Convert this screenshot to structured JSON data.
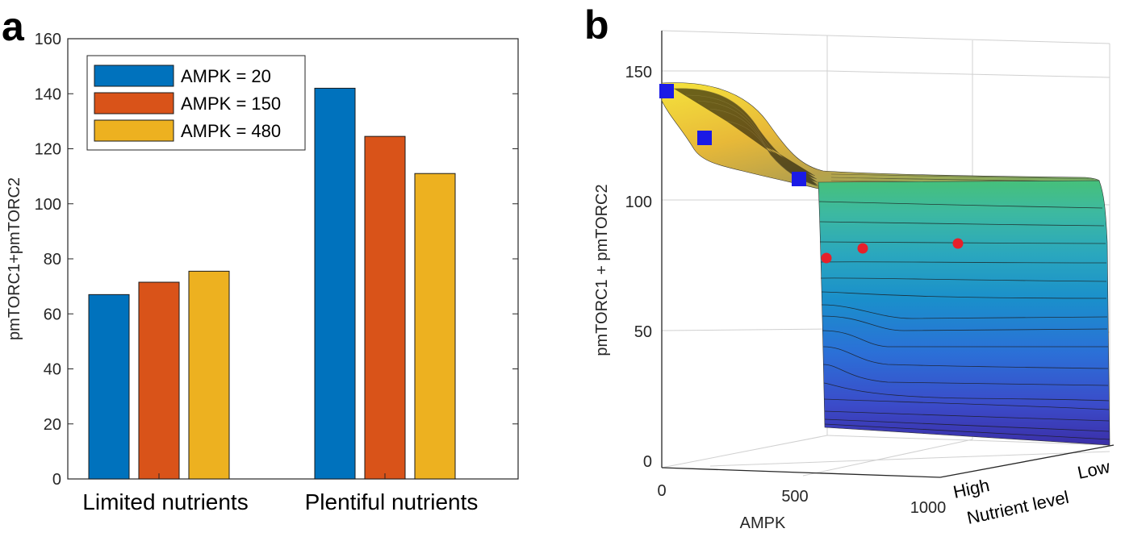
{
  "panels": {
    "a": "a",
    "b": "b"
  },
  "chart_data": [
    {
      "type": "bar",
      "panel": "a",
      "categories": [
        "Limited nutrients",
        "Plentiful nutrients"
      ],
      "series": [
        {
          "name": "AMPK = 20",
          "values": [
            67,
            142
          ],
          "color": "#0072BD"
        },
        {
          "name": "AMPK = 150",
          "values": [
            71.5,
            124.5
          ],
          "color": "#D95319"
        },
        {
          "name": "AMPK = 480",
          "values": [
            75.5,
            111
          ],
          "color": "#EDB120"
        }
      ],
      "title": "",
      "xlabel": "",
      "ylabel": "pmTORC1+pmTORC2",
      "ylim": [
        0,
        160
      ],
      "yticks": [
        "0",
        "20",
        "40",
        "60",
        "80",
        "100",
        "120",
        "140",
        "160"
      ],
      "legend": "top-left",
      "grid": false
    },
    {
      "type": "surface",
      "panel": "b",
      "title": "",
      "xlabel": "AMPK",
      "ylabel": "Nutrient level",
      "zlabel": "pmTORC1 + pmTORC2",
      "xticks": [
        "0",
        "500",
        "1000"
      ],
      "yticks": [
        "High",
        "Low"
      ],
      "zticks": [
        "0",
        "50",
        "100",
        "150"
      ],
      "xlim": [
        0,
        1000
      ],
      "zlim": [
        0,
        150
      ],
      "colormap": "parula",
      "surface_plateau_high_nutrient": 141,
      "surface_plateau_low_nutrient": 107,
      "markers_squares": [
        {
          "ampk": 20,
          "value": 142,
          "color": "#1A1AE6"
        },
        {
          "ampk": 150,
          "value": 124,
          "color": "#1A1AE6"
        },
        {
          "ampk": 480,
          "value": 108,
          "color": "#1A1AE6"
        }
      ],
      "markers_dots": [
        {
          "ampk": 480,
          "value": 77,
          "color": "#E6202A"
        },
        {
          "ampk": 650,
          "value": 81,
          "color": "#E6202A"
        },
        {
          "ampk": 1000,
          "value": 83,
          "color": "#E6202A"
        }
      ],
      "grid": true
    }
  ]
}
